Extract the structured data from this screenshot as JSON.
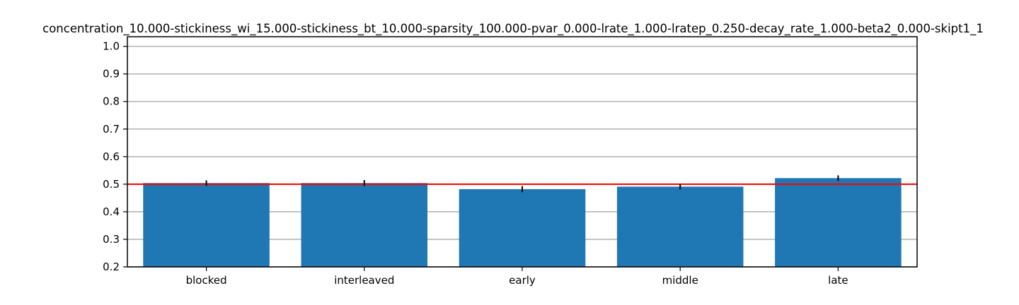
{
  "chart_data": {
    "type": "bar",
    "title": "concentration_10.000-stickiness_wi_15.000-stickiness_bt_10.000-sparsity_100.000-pvar_0.000-lrate_1.000-lratep_0.250-decay_rate_1.000-beta2_0.000-skipt1_1",
    "xlabel": "",
    "ylabel": "",
    "categories": [
      "blocked",
      "interleaved",
      "early",
      "middle",
      "late"
    ],
    "values": [
      0.504,
      0.504,
      0.482,
      0.491,
      0.522
    ],
    "errors": [
      0.01,
      0.011,
      0.011,
      0.01,
      0.01
    ],
    "ylim": [
      0.2,
      1.035
    ],
    "yticks": [
      0.2,
      0.3,
      0.4,
      0.5,
      0.6,
      0.7,
      0.8,
      0.9,
      1.0
    ],
    "ytick_labels": [
      "0.2",
      "0.3",
      "0.4",
      "0.5",
      "0.6",
      "0.7",
      "0.8",
      "0.9",
      "1.0"
    ],
    "reference_line": 0.5,
    "grid": "horizontal",
    "colors": {
      "bar": "#1f77b4",
      "reference_line": "#ff0000",
      "grid": "#b0b0b0",
      "error_bar": "#000000"
    }
  }
}
